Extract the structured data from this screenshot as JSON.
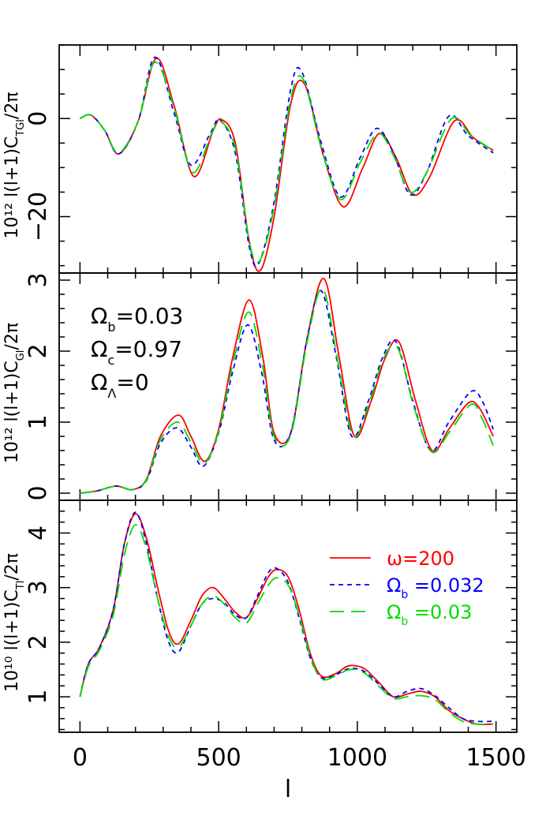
{
  "colors": {
    "axes": "#000000",
    "red": "#ff0000",
    "blue": "#0000ff",
    "green": "#00dd00"
  },
  "chart_data": [
    {
      "type": "line",
      "panel": "top",
      "ylabel": "10¹² l(l+1)C_TGl/2π",
      "xlim": [
        -75,
        1575
      ],
      "ylim": [
        -31.5,
        15
      ],
      "y_ticks": [
        -20,
        0
      ],
      "y_tick_labels": [
        "−20",
        "0"
      ],
      "x_ticks": [
        0,
        500,
        1000,
        1500
      ],
      "x_tick_labels": [],
      "series": [
        {
          "color": "red",
          "style": "solid",
          "x": [
            0,
            40,
            90,
            140,
            210,
            275,
            340,
            410,
            480,
            510,
            560,
            610,
            650,
            700,
            760,
            810,
            880,
            950,
            1020,
            1080,
            1140,
            1200,
            1260,
            1350,
            1420,
            1490
          ],
          "y": [
            0,
            0.7,
            -2.5,
            -7.2,
            -0.5,
            12.3,
            2.5,
            -11.8,
            -2.5,
            -0.2,
            -5,
            -25,
            -31,
            -20,
            3,
            7,
            -8,
            -18,
            -10,
            -3,
            -8,
            -15.5,
            -12,
            -0.5,
            -4,
            -6.5
          ]
        },
        {
          "color": "blue",
          "style": "dashed",
          "x": [
            0,
            40,
            90,
            140,
            210,
            270,
            340,
            400,
            470,
            505,
            560,
            610,
            645,
            700,
            760,
            800,
            870,
            940,
            1010,
            1070,
            1130,
            1190,
            1250,
            1330,
            1400,
            1490
          ],
          "y": [
            0,
            0.7,
            -2.5,
            -7.2,
            -0.5,
            12.5,
            1,
            -9.5,
            -3,
            -0.3,
            -7,
            -26,
            -29.5,
            -17,
            6,
            9.5,
            -5,
            -16,
            -8,
            -2,
            -7,
            -15.5,
            -11,
            0.5,
            -3.5,
            -7
          ]
        },
        {
          "color": "green",
          "style": "longdash",
          "x": [
            0,
            40,
            90,
            140,
            210,
            270,
            340,
            405,
            475,
            505,
            560,
            610,
            648,
            700,
            760,
            805,
            870,
            940,
            1010,
            1075,
            1130,
            1190,
            1250,
            1340,
            1410,
            1490
          ],
          "y": [
            0,
            0.7,
            -2.5,
            -7,
            -0.5,
            11.5,
            2,
            -11,
            -3,
            -0.5,
            -6,
            -25,
            -29,
            -18,
            4,
            8,
            -6,
            -16.5,
            -9,
            -3,
            -7.5,
            -15,
            -11,
            0,
            -3.5,
            -6.5
          ]
        }
      ]
    },
    {
      "type": "line",
      "panel": "middle",
      "ylabel": "10¹² l(l+1)C_Gl/2π",
      "xlim": [
        -75,
        1575
      ],
      "ylim": [
        -0.1,
        3.1
      ],
      "y_ticks": [
        0,
        1,
        2,
        3
      ],
      "y_tick_labels": [
        "0",
        "1",
        "2",
        "3"
      ],
      "x_ticks": [
        0,
        500,
        1000,
        1500
      ],
      "x_tick_labels": [],
      "annotations": [
        "Ω_b=0.03",
        "Ω_c=0.97",
        "Ω_Λ=0"
      ],
      "series": [
        {
          "color": "red",
          "style": "solid",
          "x": [
            0,
            60,
            130,
            190,
            240,
            290,
            355,
            400,
            450,
            500,
            550,
            610,
            660,
            700,
            760,
            820,
            880,
            935,
            990,
            1050,
            1100,
            1150,
            1210,
            1270,
            1330,
            1400,
            1440,
            1490
          ],
          "y": [
            0,
            0.03,
            0.1,
            0.05,
            0.2,
            0.8,
            1.1,
            0.8,
            0.45,
            0.9,
            1.9,
            2.72,
            1.9,
            0.85,
            0.85,
            2.2,
            3.02,
            1.9,
            0.8,
            1.3,
            1.9,
            2.13,
            1.3,
            0.6,
            0.9,
            1.27,
            1.2,
            0.8
          ]
        },
        {
          "color": "blue",
          "style": "dashed",
          "x": [
            0,
            60,
            130,
            190,
            240,
            290,
            350,
            400,
            445,
            500,
            550,
            605,
            655,
            700,
            760,
            820,
            870,
            925,
            980,
            1040,
            1090,
            1140,
            1200,
            1265,
            1330,
            1410,
            1450,
            1490
          ],
          "y": [
            0,
            0.03,
            0.1,
            0.05,
            0.18,
            0.7,
            0.92,
            0.65,
            0.38,
            0.85,
            1.7,
            2.37,
            1.7,
            0.75,
            0.85,
            2.2,
            2.85,
            1.9,
            0.8,
            1.3,
            1.9,
            2.13,
            1.3,
            0.6,
            1.0,
            1.43,
            1.3,
            0.9
          ]
        },
        {
          "color": "green",
          "style": "longdash",
          "x": [
            0,
            60,
            130,
            190,
            240,
            290,
            352,
            400,
            448,
            500,
            550,
            608,
            658,
            700,
            760,
            820,
            875,
            930,
            985,
            1045,
            1095,
            1145,
            1205,
            1268,
            1330,
            1410,
            1450,
            1490
          ],
          "y": [
            0,
            0.03,
            0.1,
            0.05,
            0.19,
            0.75,
            1.0,
            0.72,
            0.42,
            0.87,
            1.8,
            2.55,
            1.8,
            0.8,
            0.82,
            2.15,
            2.88,
            1.85,
            0.8,
            1.3,
            1.9,
            2.05,
            1.2,
            0.58,
            0.85,
            1.25,
            1.05,
            0.67
          ]
        }
      ]
    },
    {
      "type": "line",
      "panel": "bottom",
      "ylabel": "10¹⁰ l(l+1)C_Tl/2π",
      "xlabel": "l",
      "xlim": [
        -75,
        1575
      ],
      "ylim": [
        0.35,
        4.6
      ],
      "y_ticks": [
        1,
        2,
        3,
        4
      ],
      "y_tick_labels": [
        "1",
        "2",
        "3",
        "4"
      ],
      "x_ticks": [
        0,
        500,
        1000,
        1500
      ],
      "x_tick_labels": [
        "0",
        "500",
        "1000",
        "1500"
      ],
      "legend": {
        "placement": "top-right",
        "entries": [
          {
            "label": "ω=200",
            "color": "red",
            "style": "solid"
          },
          {
            "label": "Ω_b =0.032",
            "color": "blue",
            "style": "dashed"
          },
          {
            "label": "Ω_b =0.03",
            "color": "green",
            "style": "longdash"
          }
        ]
      },
      "series": [
        {
          "color": "red",
          "style": "solid",
          "x": [
            0,
            30,
            70,
            120,
            160,
            200,
            240,
            280,
            320,
            355,
            400,
            440,
            480,
            520,
            560,
            600,
            640,
            680,
            710,
            750,
            790,
            830,
            870,
            920,
            960,
            990,
            1030,
            1080,
            1130,
            1180,
            1230,
            1280,
            1330,
            1380,
            1430,
            1490
          ],
          "y": [
            1.0,
            1.6,
            1.9,
            2.6,
            3.8,
            4.35,
            3.9,
            3.0,
            2.2,
            1.97,
            2.4,
            2.85,
            3.0,
            2.8,
            2.55,
            2.45,
            2.8,
            3.2,
            3.33,
            3.2,
            2.6,
            1.8,
            1.38,
            1.42,
            1.55,
            1.57,
            1.5,
            1.25,
            1.0,
            1.05,
            1.1,
            1.0,
            0.75,
            0.6,
            0.5,
            0.5
          ]
        },
        {
          "color": "blue",
          "style": "dashed",
          "x": [
            0,
            30,
            70,
            120,
            160,
            200,
            240,
            280,
            320,
            355,
            400,
            440,
            480,
            520,
            560,
            600,
            640,
            680,
            710,
            750,
            790,
            830,
            870,
            920,
            960,
            990,
            1030,
            1080,
            1130,
            1180,
            1230,
            1280,
            1330,
            1380,
            1430,
            1490
          ],
          "y": [
            1.0,
            1.6,
            1.9,
            2.6,
            3.8,
            4.38,
            3.8,
            2.8,
            2.0,
            1.82,
            2.3,
            2.7,
            2.8,
            2.72,
            2.5,
            2.45,
            2.85,
            3.28,
            3.35,
            3.1,
            2.45,
            1.72,
            1.35,
            1.4,
            1.5,
            1.52,
            1.45,
            1.22,
            1.0,
            1.1,
            1.15,
            1.02,
            0.8,
            0.6,
            0.55,
            0.55
          ]
        },
        {
          "color": "green",
          "style": "longdash",
          "x": [
            0,
            30,
            70,
            120,
            160,
            200,
            240,
            280,
            320,
            355,
            400,
            440,
            480,
            520,
            560,
            600,
            640,
            680,
            710,
            750,
            790,
            830,
            870,
            920,
            960,
            990,
            1030,
            1080,
            1130,
            1180,
            1230,
            1280,
            1330,
            1380,
            1430,
            1490
          ],
          "y": [
            1.0,
            1.55,
            1.85,
            2.5,
            3.6,
            4.15,
            3.7,
            2.8,
            2.1,
            1.9,
            2.3,
            2.7,
            2.85,
            2.7,
            2.45,
            2.35,
            2.7,
            3.05,
            3.18,
            3.05,
            2.5,
            1.75,
            1.33,
            1.38,
            1.48,
            1.5,
            1.42,
            1.18,
            0.97,
            1.0,
            1.02,
            0.95,
            0.72,
            0.55,
            0.5,
            0.5
          ]
        }
      ]
    }
  ]
}
